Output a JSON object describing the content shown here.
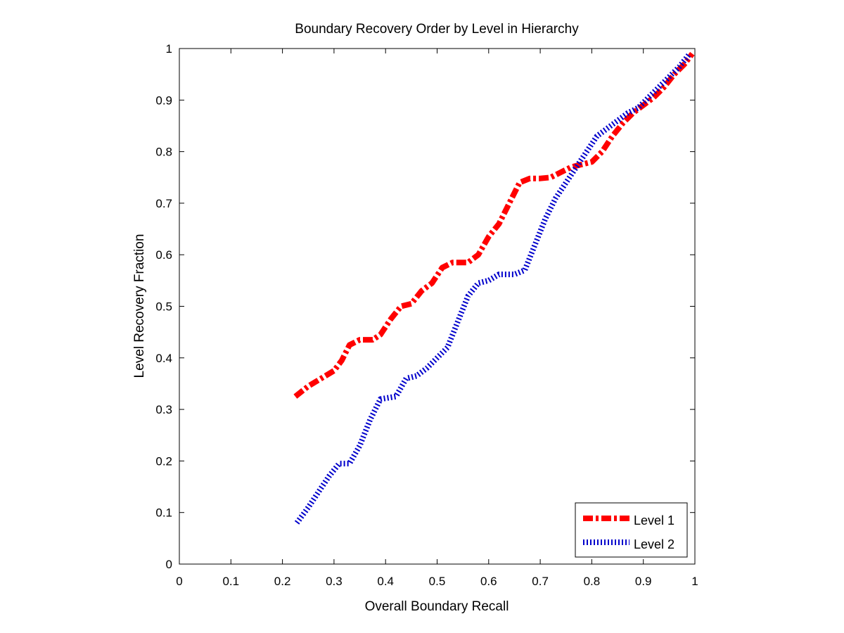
{
  "chart_data": {
    "type": "line",
    "title": "Boundary Recovery Order by Level in Hierarchy",
    "xlabel": "Overall Boundary Recall",
    "ylabel": "Level Recovery Fraction",
    "xlim": [
      0,
      1
    ],
    "ylim": [
      0,
      1
    ],
    "xticks": [
      "0",
      "0.1",
      "0.2",
      "0.3",
      "0.4",
      "0.5",
      "0.6",
      "0.7",
      "0.8",
      "0.9",
      "1"
    ],
    "yticks": [
      "0",
      "0.1",
      "0.2",
      "0.3",
      "0.4",
      "0.5",
      "0.6",
      "0.7",
      "0.8",
      "0.9",
      "1"
    ],
    "grid": false,
    "legend_position": "bottom-right",
    "series": [
      {
        "name": "Level 1",
        "color": "#ff0000",
        "style": "thick dash-dot",
        "x": [
          0.225,
          0.25,
          0.275,
          0.3,
          0.315,
          0.33,
          0.35,
          0.375,
          0.39,
          0.41,
          0.43,
          0.45,
          0.47,
          0.49,
          0.51,
          0.53,
          0.56,
          0.58,
          0.6,
          0.62,
          0.64,
          0.66,
          0.68,
          0.7,
          0.72,
          0.74,
          0.76,
          0.78,
          0.8,
          0.82,
          0.84,
          0.86,
          0.88,
          0.9,
          0.92,
          0.94,
          0.96,
          0.98,
          0.995
        ],
        "y": [
          0.325,
          0.345,
          0.36,
          0.375,
          0.395,
          0.425,
          0.435,
          0.435,
          0.445,
          0.475,
          0.5,
          0.505,
          0.53,
          0.545,
          0.575,
          0.585,
          0.585,
          0.6,
          0.635,
          0.66,
          0.7,
          0.74,
          0.748,
          0.748,
          0.75,
          0.76,
          0.77,
          0.775,
          0.78,
          0.8,
          0.83,
          0.855,
          0.875,
          0.89,
          0.905,
          0.925,
          0.95,
          0.97,
          0.99
        ]
      },
      {
        "name": "Level 2",
        "color": "#0000cc",
        "style": "hatched",
        "x": [
          0.228,
          0.25,
          0.27,
          0.29,
          0.31,
          0.33,
          0.35,
          0.37,
          0.39,
          0.42,
          0.44,
          0.46,
          0.48,
          0.5,
          0.52,
          0.54,
          0.56,
          0.58,
          0.6,
          0.62,
          0.65,
          0.67,
          0.69,
          0.71,
          0.73,
          0.75,
          0.77,
          0.79,
          0.81,
          0.83,
          0.85,
          0.87,
          0.89,
          0.91,
          0.93,
          0.95,
          0.97,
          0.99
        ],
        "y": [
          0.08,
          0.11,
          0.14,
          0.17,
          0.195,
          0.195,
          0.23,
          0.28,
          0.32,
          0.325,
          0.36,
          0.365,
          0.38,
          0.4,
          0.42,
          0.47,
          0.52,
          0.545,
          0.55,
          0.562,
          0.562,
          0.57,
          0.62,
          0.67,
          0.71,
          0.74,
          0.77,
          0.8,
          0.83,
          0.845,
          0.86,
          0.875,
          0.885,
          0.905,
          0.925,
          0.945,
          0.965,
          0.99
        ]
      }
    ]
  }
}
